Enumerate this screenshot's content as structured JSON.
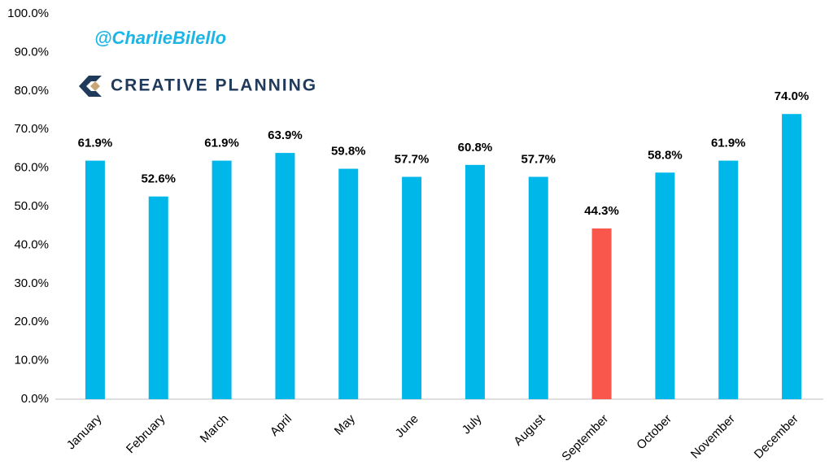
{
  "chart_data": {
    "type": "bar",
    "annotations": [
      "@CharlieBilello",
      "CREATIVE PLANNING"
    ],
    "categories": [
      "January",
      "February",
      "March",
      "April",
      "May",
      "June",
      "July",
      "August",
      "September",
      "October",
      "November",
      "December"
    ],
    "values": [
      61.9,
      52.6,
      61.9,
      63.9,
      59.8,
      57.7,
      60.8,
      57.7,
      44.3,
      58.8,
      61.9,
      74.0
    ],
    "value_labels": [
      "61.9%",
      "52.6%",
      "61.9%",
      "63.9%",
      "59.8%",
      "57.7%",
      "60.8%",
      "57.7%",
      "44.3%",
      "58.8%",
      "61.9%",
      "74.0%"
    ],
    "colors": [
      "#00b7ea",
      "#00b7ea",
      "#00b7ea",
      "#00b7ea",
      "#00b7ea",
      "#00b7ea",
      "#00b7ea",
      "#00b7ea",
      "#f9574b",
      "#00b7ea",
      "#00b7ea",
      "#00b7ea"
    ],
    "ylim": [
      0,
      100
    ],
    "yticks": [
      {
        "value": 0,
        "label": "0.0%"
      },
      {
        "value": 10,
        "label": "10.0%"
      },
      {
        "value": 20,
        "label": "20.0%"
      },
      {
        "value": 30,
        "label": "30.0%"
      },
      {
        "value": 40,
        "label": "40.0%"
      },
      {
        "value": 50,
        "label": "50.0%"
      },
      {
        "value": 60,
        "label": "60.0%"
      },
      {
        "value": 70,
        "label": "70.0%"
      },
      {
        "value": 80,
        "label": "80.0%"
      },
      {
        "value": 90,
        "label": "90.0%"
      },
      {
        "value": 100,
        "label": "100.0%"
      }
    ],
    "grid": false
  }
}
